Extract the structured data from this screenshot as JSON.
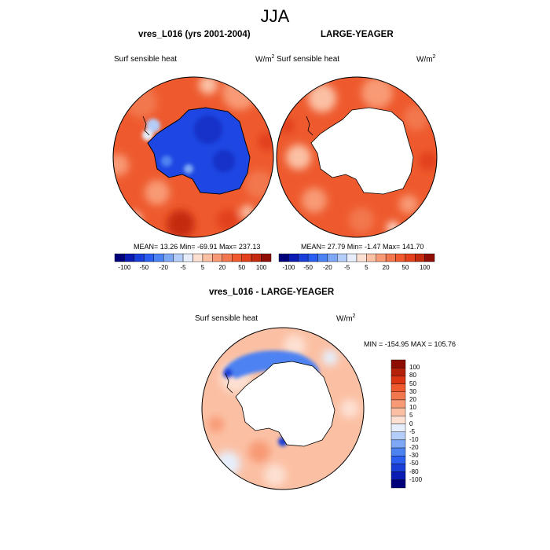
{
  "figure": {
    "season": "JJA"
  },
  "panel_a": {
    "title": "vres_L016 (yrs 2001-2004)",
    "variable": "Surf sensible heat",
    "units": "W/m",
    "units_exp": "2",
    "mean_text": "MEAN=  13.26  Min=  -69.91  Max= 237.13"
  },
  "panel_b": {
    "title": "LARGE-YEAGER",
    "variable": "Surf sensible heat",
    "units": "W/m",
    "units_exp": "2",
    "mean_text": "MEAN=  27.79  Min=  -1.47  Max= 141.70"
  },
  "panel_c": {
    "title": "vres_L016 - LARGE-YEAGER",
    "variable": "Surf sensible heat",
    "units": "W/m",
    "units_exp": "2",
    "minmax_text": "MIN = -154.95 MAX = 105.76"
  },
  "colorbar_h": {
    "labels": [
      "-100",
      "-50",
      "-20",
      "-5",
      "5",
      "20",
      "50",
      "100"
    ],
    "colors": [
      "#00007a",
      "#0a1cb4",
      "#1a3fd8",
      "#2a5ef0",
      "#4d82f2",
      "#7ea8f6",
      "#b4cdf8",
      "#e6eefb",
      "#fde0d2",
      "#fbc0a4",
      "#f89a75",
      "#f3774e",
      "#ee5a2e",
      "#e2401b",
      "#c42a0e",
      "#8d0c04"
    ]
  },
  "colorbar_v": {
    "labels": [
      "100",
      "80",
      "50",
      "30",
      "20",
      "10",
      "5",
      "0",
      "-5",
      "-10",
      "-20",
      "-30",
      "-50",
      "-80",
      "-100"
    ],
    "colors": [
      "#8d0c04",
      "#b52008",
      "#d93512",
      "#ee5a2e",
      "#f3774e",
      "#f89a75",
      "#fbc0a4",
      "#fde0d2",
      "#e6eefb",
      "#b4cdf8",
      "#7ea8f6",
      "#4d82f2",
      "#2a5ef0",
      "#1a3fd8",
      "#0a1cb4",
      "#00007a"
    ]
  }
}
